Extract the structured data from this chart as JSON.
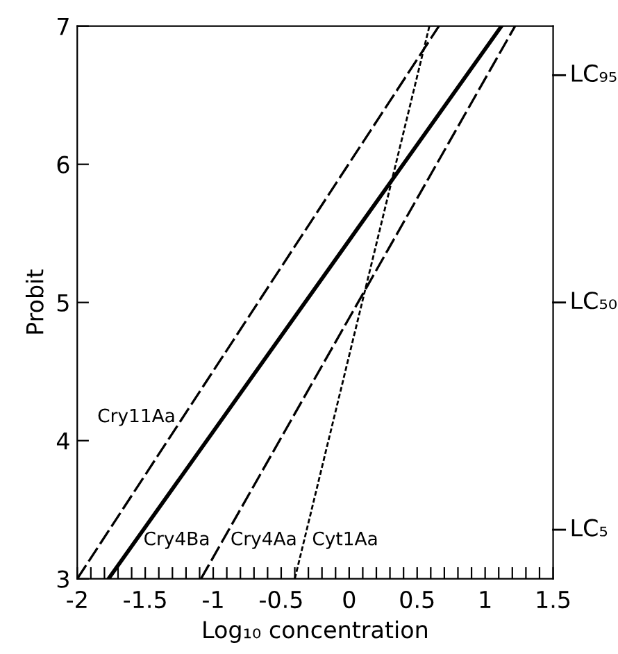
{
  "chart_data": {
    "type": "line",
    "xlabel": "Log₁₀ concentration",
    "ylabel": "Probit",
    "series": [
      {
        "color": "#000000",
        "line_style": "dashed",
        "x": [
          -2,
          0.66
        ],
        "values": [
          3,
          7
        ]
      },
      {
        "color": "#000000",
        "line_style": "solid",
        "x": [
          -1.77,
          1.12
        ],
        "values": [
          3,
          7
        ]
      },
      {
        "color": "#000000",
        "line_style": "dashed",
        "x": [
          -1.09,
          1.22
        ],
        "values": [
          3,
          7
        ]
      },
      {
        "color": "#000000",
        "line_style": "dotted",
        "x": [
          -0.4,
          0.59
        ],
        "values": [
          3,
          7
        ]
      }
    ],
    "annotations": [
      {
        "text": "Cry11Aa",
        "x": -1.22,
        "y": 4.17
      },
      {
        "text": "Cry4Ba",
        "x": -1.57,
        "y": 3.28
      },
      {
        "text": "Cry4Aa",
        "x": -0.93,
        "y": 3.28
      },
      {
        "text": "Cyt1Aa",
        "x": -0.33,
        "y": 3.28
      }
    ],
    "xlim": [
      -2,
      1.5
    ],
    "xticks": [
      -2,
      {
        "value": -1.9,
        "label": null
      },
      {
        "value": -1.8,
        "label": null
      },
      {
        "value": -1.7,
        "label": null
      },
      {
        "value": -1.6,
        "label": null
      },
      -1.5,
      {
        "value": -1.4,
        "label": null
      },
      {
        "value": -1.3,
        "label": null
      },
      {
        "value": -1.2,
        "label": null
      },
      {
        "value": -1.1,
        "label": null
      },
      -1,
      {
        "value": -0.9,
        "label": null
      },
      {
        "value": -0.8,
        "label": null
      },
      {
        "value": -0.7,
        "label": null
      },
      {
        "value": -0.6,
        "label": null
      },
      -0.5,
      {
        "value": -0.4,
        "label": null
      },
      {
        "value": -0.3,
        "label": null
      },
      {
        "value": -0.2,
        "label": null
      },
      {
        "value": -0.1,
        "label": null
      },
      0,
      {
        "value": 0.1,
        "label": null
      },
      {
        "value": 0.2,
        "label": null
      },
      {
        "value": 0.3,
        "label": null
      },
      {
        "value": 0.4,
        "label": null
      },
      0.5,
      {
        "value": 0.6,
        "label": null
      },
      {
        "value": 0.7,
        "label": null
      },
      {
        "value": 0.8,
        "label": null
      },
      {
        "value": 0.9,
        "label": null
      },
      1,
      {
        "value": 1.1,
        "label": null
      },
      {
        "value": 1.2,
        "label": null
      },
      {
        "value": 1.3,
        "label": null
      },
      {
        "value": 1.4,
        "label": null
      },
      1.5
    ],
    "ylim": [
      3,
      7
    ],
    "yticks": [
      3,
      4,
      5,
      6,
      7
    ],
    "ref_lines": [
      {
        "axis": "y",
        "value": 3.355,
        "label": "LC₅"
      },
      {
        "axis": "y",
        "value": 5,
        "label": "LC₅₀"
      },
      {
        "axis": "y",
        "value": 6.645,
        "label": "LC₉₅"
      }
    ],
    "grid": false,
    "legend": false,
    "marker": "none"
  }
}
